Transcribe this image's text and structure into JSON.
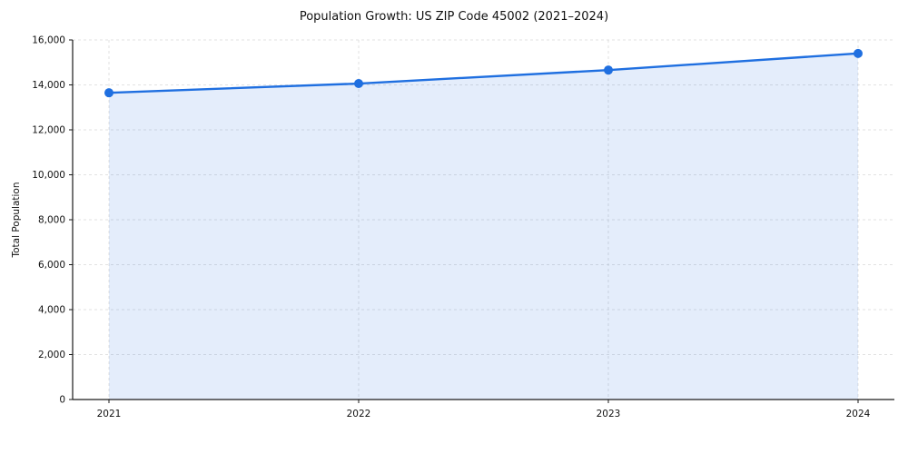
{
  "chart_data": {
    "type": "area",
    "title": "Population Growth: US ZIP Code 45002 (2021–2024)",
    "xlabel": "",
    "ylabel": "Total Population",
    "x": [
      2021,
      2022,
      2023,
      2024
    ],
    "series": [
      {
        "name": "Total Population",
        "values": [
          13650,
          14060,
          14660,
          15400
        ]
      }
    ],
    "ylim": [
      0,
      16000
    ],
    "yticks": [
      0,
      2000,
      4000,
      6000,
      8000,
      10000,
      12000,
      14000,
      16000
    ],
    "grid": true,
    "legend_position": "none",
    "colors": {
      "line": "#1f6fe0",
      "marker": "#1f6fe0",
      "fill": "#1f6fe0",
      "fill_opacity": 0.12,
      "grid": "#d9d9d9",
      "axis": "#1a1a1a",
      "text": "#111111"
    }
  }
}
